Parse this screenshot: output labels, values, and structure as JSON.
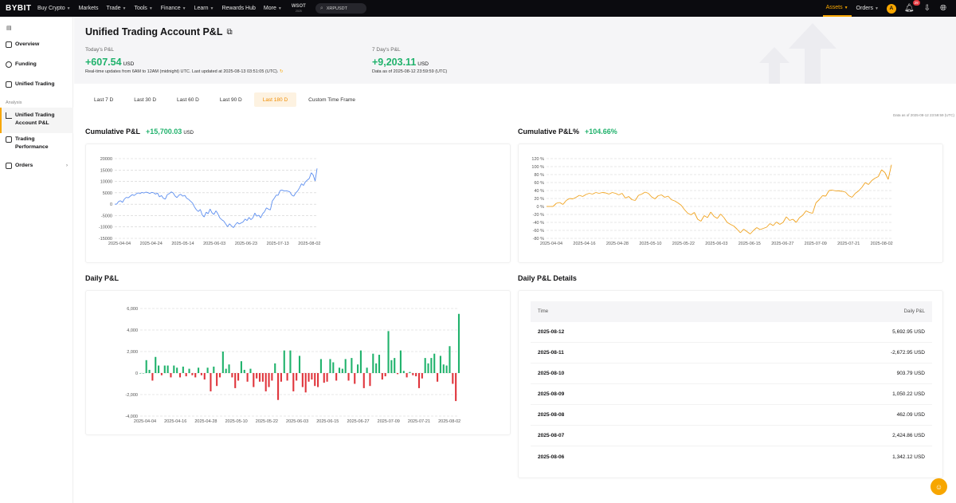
{
  "nav": {
    "logo": "BYBIT",
    "items": [
      "Buy Crypto",
      "Markets",
      "Trade",
      "Tools",
      "Finance",
      "Learn",
      "Rewards Hub",
      "More"
    ],
    "wsot": "WSOT",
    "wsot_year": "2025",
    "search": "XRPUSDT",
    "assets": "Assets",
    "orders": "Orders",
    "avatar": "A",
    "notif_count": "29"
  },
  "sidebar": {
    "items": [
      {
        "label": "Overview"
      },
      {
        "label": "Funding"
      },
      {
        "label": "Unified Trading"
      }
    ],
    "section": "Analysis",
    "analysis": [
      {
        "label": "Unified Trading Account P&L"
      },
      {
        "label": "Trading Performance"
      }
    ],
    "orders": "Orders"
  },
  "header": {
    "title": "Unified Trading Account P&L",
    "today_label": "Today's P&L",
    "today_value": "+607.54",
    "today_unit": "USD",
    "today_note": "Real-time updates from 6AM to 12AM (midnight) UTC. Last updated at 2025-08-13 03:51:05 (UTC).",
    "week_label": "7 Day's P&L",
    "week_value": "+9,203.11",
    "week_unit": "USD",
    "week_note": "Data as of 2025-08-12 23:59:59 (UTC)"
  },
  "tabs": [
    "Last 7 D",
    "Last 30 D",
    "Last 60 D",
    "Last 90 D",
    "Last 180 D",
    "Custom Time Frame"
  ],
  "data_asof": "Data as of 2025-08-12 23:59:59 (UTC)",
  "sections": {
    "cum_title": "Cumulative P&L",
    "cum_value": "+15,700.03",
    "cum_unit": "USD",
    "cumpct_title": "Cumulative P&L%",
    "cumpct_value": "+104.66%",
    "daily_title": "Daily P&L",
    "details_title": "Daily P&L Details"
  },
  "table": {
    "headers": [
      "Time",
      "Daily P&L"
    ],
    "rows": [
      [
        "2025-08-12",
        "5,692.95 USD"
      ],
      [
        "2025-08-11",
        "-2,672.95 USD"
      ],
      [
        "2025-08-10",
        "903.79 USD"
      ],
      [
        "2025-08-09",
        "1,050.22 USD"
      ],
      [
        "2025-08-08",
        "462.09 USD"
      ],
      [
        "2025-08-07",
        "2,424.86 USD"
      ],
      [
        "2025-08-06",
        "1,342.12 USD"
      ]
    ]
  },
  "colors": {
    "accent": "#f7a600",
    "up": "#20b26c",
    "down": "#e0353c",
    "line_blue": "#5b8def",
    "line_orange": "#f0a21c"
  },
  "chart_data": [
    {
      "type": "line",
      "title": "Cumulative P&L",
      "ylim": [
        -15000,
        20000
      ],
      "yticks": [
        "20000",
        "15000",
        "10000",
        "5000",
        "0",
        "-5000",
        "-10000",
        "-15000"
      ],
      "xticks": [
        "2025-04-04",
        "2025-04-24",
        "2025-05-14",
        "2025-06-03",
        "2025-06-23",
        "2025-07-13",
        "2025-08-02"
      ],
      "x_start": "2025-04-04",
      "x_end": "2025-08-12",
      "values": [
        0,
        0,
        1200,
        1500,
        800,
        2300,
        3000,
        2800,
        3500,
        4200,
        3800,
        4500,
        5000,
        4600,
        5200,
        4900,
        5300,
        5100,
        4700,
        5200,
        5000,
        4400,
        4900,
        3200,
        3800,
        2600,
        2200,
        4200,
        4600,
        5400,
        5000,
        3600,
        2900,
        4000,
        4300,
        3500,
        3900,
        2600,
        2100,
        1300,
        500,
        -1200,
        -2500,
        -3200,
        -2300,
        -4800,
        -5600,
        -3500,
        -4200,
        -2100,
        -3800,
        -4500,
        -2900,
        -4200,
        -6000,
        -6800,
        -7400,
        -8600,
        -9900,
        -8600,
        -9500,
        -10300,
        -9000,
        -8000,
        -8700,
        -8200,
        -7800,
        -6500,
        -7200,
        -5800,
        -6800,
        -6000,
        -3900,
        -5300,
        -4800,
        -6000,
        -4200,
        -3300,
        -1600,
        -2200,
        -2500,
        1400,
        2600,
        4000,
        3900,
        6000,
        6200,
        5800,
        5900,
        5700,
        5400,
        4000,
        3500,
        4900,
        5800,
        7200,
        9000,
        8200,
        9800,
        10600,
        11300,
        13800,
        12800,
        10200,
        15700
      ]
    },
    {
      "type": "line",
      "title": "Cumulative P&L%",
      "ylim": [
        -80,
        120
      ],
      "yticks": [
        "120 %",
        "100 %",
        "80 %",
        "60 %",
        "40 %",
        "20 %",
        "0 %",
        "-20 %",
        "-40 %",
        "-60 %",
        "-80 %"
      ],
      "xticks": [
        "2025-04-04",
        "2025-04-16",
        "2025-04-28",
        "2025-05-10",
        "2025-05-22",
        "2025-06-03",
        "2025-06-15",
        "2025-06-27",
        "2025-07-09",
        "2025-07-21",
        "2025-08-02"
      ],
      "x_start": "2025-04-04",
      "x_end": "2025-08-12",
      "values": [
        0,
        0,
        0,
        8,
        10,
        5,
        15,
        20,
        19,
        23,
        28,
        25,
        30,
        33,
        31,
        35,
        33,
        35,
        34,
        31,
        35,
        33,
        29,
        33,
        21,
        25,
        17,
        15,
        28,
        31,
        36,
        33,
        24,
        19,
        27,
        29,
        23,
        26,
        17,
        14,
        9,
        3,
        -8,
        -17,
        -21,
        -15,
        -32,
        -37,
        -23,
        -28,
        -14,
        -25,
        -30,
        -19,
        -28,
        -40,
        -45,
        -49,
        -57,
        -66,
        -57,
        -63,
        -69,
        -60,
        -53,
        -58,
        -55,
        -52,
        -43,
        -48,
        -39,
        -45,
        -40,
        -26,
        -35,
        -32,
        -40,
        -28,
        -22,
        -11,
        -15,
        -17,
        9,
        17,
        27,
        26,
        40,
        41,
        39,
        39,
        38,
        36,
        27,
        23,
        33,
        39,
        48,
        60,
        55,
        65,
        71,
        75,
        92,
        85,
        68,
        104.66
      ]
    },
    {
      "type": "bar",
      "title": "Daily P&L",
      "ylim": [
        -4000,
        6000
      ],
      "yticks": [
        "6,000",
        "4,000",
        "2,000",
        "0",
        "-2,000",
        "-4,000"
      ],
      "xticks": [
        "2025-04-04",
        "2025-04-16",
        "2025-04-28",
        "2025-05-10",
        "2025-05-22",
        "2025-06-03",
        "2025-06-15",
        "2025-06-27",
        "2025-07-09",
        "2025-07-21",
        "2025-08-02"
      ],
      "x_start": "2025-04-04",
      "x_end": "2025-08-12",
      "values": [
        0,
        0,
        1200,
        300,
        -700,
        1500,
        700,
        -200,
        700,
        700,
        -400,
        700,
        500,
        -400,
        600,
        -300,
        400,
        -200,
        -400,
        500,
        -200,
        -600,
        500,
        -1700,
        600,
        -1200,
        -400,
        2000,
        400,
        800,
        -400,
        -1400,
        -700,
        1100,
        300,
        -800,
        400,
        -1300,
        -500,
        -800,
        -800,
        -1700,
        -1300,
        -700,
        900,
        -2500,
        -800,
        2100,
        -700,
        2100,
        -1700,
        -700,
        1600,
        -1300,
        -1800,
        -800,
        -600,
        -1200,
        -1300,
        1300,
        -900,
        -800,
        1300,
        1000,
        -700,
        500,
        400,
        1300,
        -700,
        1400,
        -1000,
        800,
        2100,
        -1400,
        500,
        -1200,
        1800,
        900,
        1700,
        -600,
        -300,
        3900,
        1200,
        1400,
        -100,
        2100,
        200,
        -400,
        100,
        -200,
        -300,
        -1400,
        -500,
        1400,
        900,
        1400,
        1800,
        -800,
        1600,
        800,
        700,
        2500,
        -1000,
        -2600,
        5500
      ]
    }
  ]
}
